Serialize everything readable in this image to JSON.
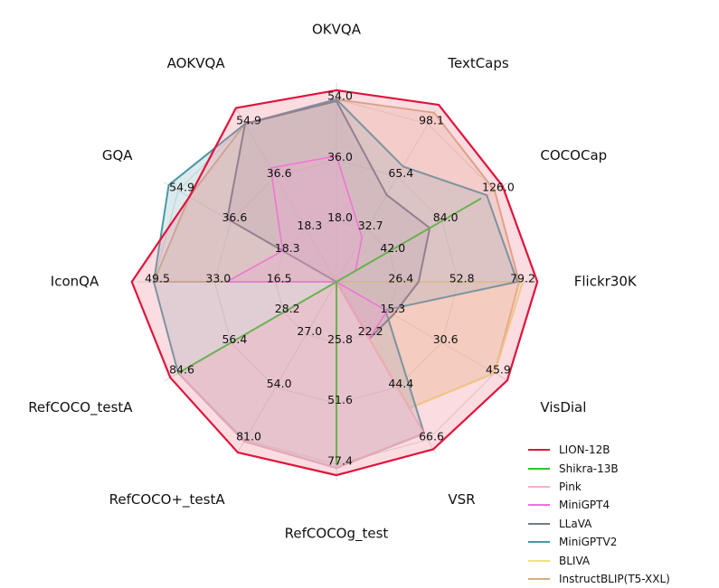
{
  "chart_data": {
    "type": "radar",
    "axes": [
      "OKVQA",
      "TextCaps",
      "COCOCap",
      "Flickr30K",
      "VisDial",
      "VSR",
      "RefCOCOg_test",
      "RefCOCO+_testA",
      "RefCOCO_testA",
      "IconQA",
      "GQA",
      "AOKVQA"
    ],
    "tick_labels": [
      [
        "18.0",
        "36.0",
        "54.0"
      ],
      [
        "32.7",
        "65.4",
        "98.1"
      ],
      [
        "42.0",
        "84.0",
        "126.0"
      ],
      [
        "26.4",
        "52.8",
        "79.2"
      ],
      [
        "15.3",
        "30.6",
        "45.9"
      ],
      [
        "22.2",
        "44.4",
        "66.6"
      ],
      [
        "25.8",
        "51.6",
        "77.4"
      ],
      [
        "27.0",
        "54.0",
        "81.0"
      ],
      [
        "28.2",
        "56.4",
        "84.6"
      ],
      [
        "16.5",
        "33.0",
        "49.5"
      ],
      [
        "18.3",
        "36.6",
        "54.9"
      ],
      [
        "18.3",
        "36.6",
        "54.9"
      ]
    ],
    "scale_max_fraction": 1.0,
    "units": "fraction of outermost ring (outer ring = last tick label value)",
    "series": [
      {
        "name": "LION-12B",
        "color": "#e0143c",
        "fill": "#f08c9c",
        "fill_opacity": 0.3,
        "line_width": 2.2,
        "values": [
          1.05,
          1.12,
          1.05,
          1.1,
          1.08,
          1.06,
          1.06,
          1.08,
          1.05,
          1.12,
          0.93,
          1.1
        ]
      },
      {
        "name": "Shikra-13B",
        "color": "#2ec42e",
        "fill": "#b8e0a0",
        "fill_opacity": 0.12,
        "line_width": 2.0,
        "values": [
          0.0,
          0.0,
          0.91,
          0.0,
          0.0,
          0.0,
          1.0,
          0.0,
          1.0,
          0.0,
          0.0,
          0.0
        ]
      },
      {
        "name": "Pink",
        "color": "#f6b2c4",
        "fill": "#f6b2c4",
        "fill_opacity": 0.28,
        "line_width": 1.6,
        "values": [
          0.0,
          0.0,
          0.0,
          0.0,
          0.0,
          0.96,
          1.02,
          1.01,
          1.0,
          0.0,
          0.0,
          0.0
        ]
      },
      {
        "name": "MiniGPT4",
        "color": "#ee6fea",
        "fill": "#f0b0ec",
        "fill_opacity": 0.3,
        "line_width": 1.6,
        "values": [
          0.69,
          0.28,
          0.12,
          0.0,
          0.32,
          0.36,
          0.0,
          0.0,
          0.0,
          0.6,
          0.34,
          0.72
        ]
      },
      {
        "name": "LLaVA",
        "color": "#707a8a",
        "fill": "#a8b0bc",
        "fill_opacity": 0.3,
        "line_width": 2.0,
        "values": [
          0.99,
          0.55,
          0.59,
          0.45,
          0.36,
          0.36,
          0.0,
          0.0,
          0.0,
          0.0,
          0.69,
          1.0
        ]
      },
      {
        "name": "MiniGPTV2",
        "color": "#4b97a3",
        "fill": "#88bcc4",
        "fill_opacity": 0.3,
        "line_width": 2.0,
        "values": [
          1.0,
          0.73,
          0.95,
          0.99,
          0.31,
          0.96,
          1.02,
          1.01,
          1.0,
          1.0,
          1.06,
          1.0
        ]
      },
      {
        "name": "BLIVA",
        "color": "#f2e07c",
        "fill": "#f6e6a0",
        "fill_opacity": 0.22,
        "line_width": 2.0,
        "values": [
          0.0,
          0.0,
          0.0,
          1.02,
          1.0,
          0.8,
          0.0,
          0.0,
          0.0,
          0.0,
          0.0,
          0.0
        ]
      },
      {
        "name": "InstructBLIP(T5-XXL)",
        "color": "#d6ac80",
        "fill": "#e8c4a0",
        "fill_opacity": 0.35,
        "line_width": 2.0,
        "values": [
          1.0,
          1.07,
          1.0,
          1.0,
          1.0,
          0.8,
          0.0,
          0.0,
          0.0,
          1.0,
          0.93,
          1.0
        ]
      }
    ]
  }
}
